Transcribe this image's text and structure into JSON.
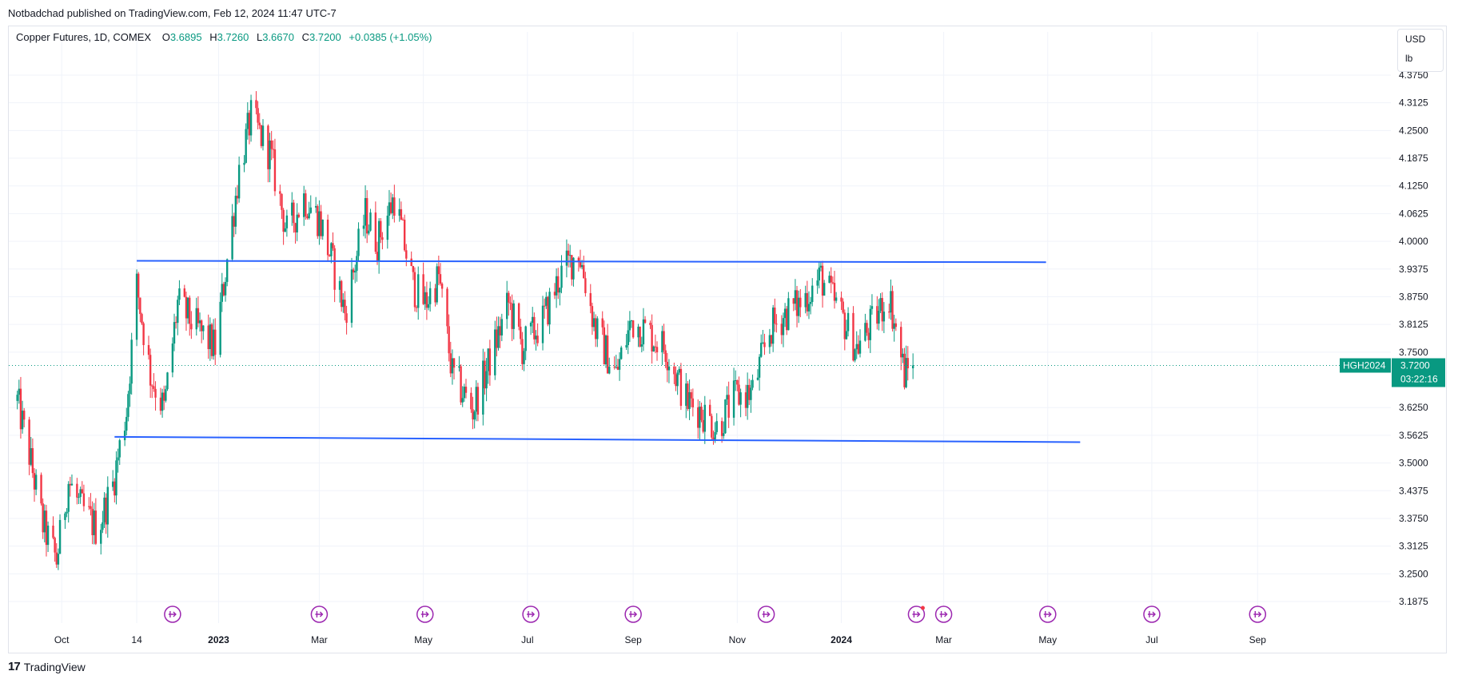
{
  "publish_line": "Notbadchad published on TradingView.com, Feb 12, 2024 11:47 UTC-7",
  "legend": {
    "symbol": "Copper Futures, 1D, COMEX",
    "open_label": "O",
    "open": "3.6895",
    "high_label": "H",
    "high": "3.7260",
    "low_label": "L",
    "low": "3.6670",
    "close_label": "C",
    "close": "3.7200",
    "change": "+0.0385 (+1.05%)"
  },
  "units": [
    "USD",
    "lb"
  ],
  "price_tag": {
    "ticker": "HGH2024",
    "price": "3.7200",
    "countdown": "03:22:16"
  },
  "brand": "TradingView",
  "colors": {
    "up": "#089981",
    "down": "#f23645",
    "trendline": "#2962ff",
    "event": "#9c27b0",
    "price_tag": "#089981"
  },
  "chart_data": {
    "type": "candlestick",
    "y_axis": {
      "min": 3.15,
      "max": 4.39,
      "ticks": [
        "4.3750",
        "4.3125",
        "4.2500",
        "4.1875",
        "4.1250",
        "4.0625",
        "4.0000",
        "3.9375",
        "3.8750",
        "3.8125",
        "3.7500",
        "3.6250",
        "3.5625",
        "3.5000",
        "3.4375",
        "3.3750",
        "3.3125",
        "3.2500",
        "3.1875"
      ]
    },
    "x_axis_labels": [
      "Oct",
      "14",
      "2023",
      "Mar",
      "May",
      "Jul",
      "Sep",
      "Nov",
      "2024",
      "Mar",
      "May",
      "Jul",
      "Sep"
    ],
    "last_price": 3.72,
    "anchors": [
      {
        "d": "2022-09-05",
        "p": 3.64
      },
      {
        "d": "2022-09-12",
        "p": 3.52
      },
      {
        "d": "2022-09-20",
        "p": 3.36
      },
      {
        "d": "2022-09-28",
        "p": 3.28
      },
      {
        "d": "2022-10-05",
        "p": 3.46
      },
      {
        "d": "2022-10-12",
        "p": 3.4
      },
      {
        "d": "2022-10-22",
        "p": 3.35
      },
      {
        "d": "2022-10-31",
        "p": 3.45
      },
      {
        "d": "2022-11-08",
        "p": 3.62
      },
      {
        "d": "2022-11-14",
        "p": 3.9
      },
      {
        "d": "2022-11-22",
        "p": 3.7
      },
      {
        "d": "2022-11-30",
        "p": 3.62
      },
      {
        "d": "2022-12-08",
        "p": 3.86
      },
      {
        "d": "2022-12-20",
        "p": 3.8
      },
      {
        "d": "2022-12-30",
        "p": 3.76
      },
      {
        "d": "2023-01-06",
        "p": 3.96
      },
      {
        "d": "2023-01-13",
        "p": 4.16
      },
      {
        "d": "2023-01-20",
        "p": 4.28
      },
      {
        "d": "2023-01-31",
        "p": 4.2
      },
      {
        "d": "2023-02-10",
        "p": 4.02
      },
      {
        "d": "2023-02-20",
        "p": 4.1
      },
      {
        "d": "2023-03-01",
        "p": 4.05
      },
      {
        "d": "2023-03-08",
        "p": 3.96
      },
      {
        "d": "2023-03-16",
        "p": 3.84
      },
      {
        "d": "2023-03-28",
        "p": 4.06
      },
      {
        "d": "2023-04-04",
        "p": 4.0
      },
      {
        "d": "2023-04-14",
        "p": 4.1
      },
      {
        "d": "2023-04-25",
        "p": 3.9
      },
      {
        "d": "2023-05-02",
        "p": 3.86
      },
      {
        "d": "2023-05-10",
        "p": 3.92
      },
      {
        "d": "2023-05-18",
        "p": 3.7
      },
      {
        "d": "2023-05-30",
        "p": 3.62
      },
      {
        "d": "2023-06-08",
        "p": 3.72
      },
      {
        "d": "2023-06-20",
        "p": 3.86
      },
      {
        "d": "2023-06-28",
        "p": 3.76
      },
      {
        "d": "2023-07-10",
        "p": 3.82
      },
      {
        "d": "2023-07-20",
        "p": 3.92
      },
      {
        "d": "2023-07-31",
        "p": 3.98
      },
      {
        "d": "2023-08-10",
        "p": 3.8
      },
      {
        "d": "2023-08-22",
        "p": 3.7
      },
      {
        "d": "2023-08-31",
        "p": 3.82
      },
      {
        "d": "2023-09-08",
        "p": 3.8
      },
      {
        "d": "2023-09-20",
        "p": 3.76
      },
      {
        "d": "2023-10-02",
        "p": 3.64
      },
      {
        "d": "2023-10-10",
        "p": 3.62
      },
      {
        "d": "2023-10-20",
        "p": 3.58
      },
      {
        "d": "2023-10-31",
        "p": 3.65
      },
      {
        "d": "2023-11-10",
        "p": 3.66
      },
      {
        "d": "2023-11-20",
        "p": 3.8
      },
      {
        "d": "2023-11-30",
        "p": 3.84
      },
      {
        "d": "2023-12-08",
        "p": 3.86
      },
      {
        "d": "2023-12-20",
        "p": 3.92
      },
      {
        "d": "2023-12-31",
        "p": 3.84
      },
      {
        "d": "2024-01-10",
        "p": 3.76
      },
      {
        "d": "2024-01-20",
        "p": 3.82
      },
      {
        "d": "2024-01-29",
        "p": 3.88
      },
      {
        "d": "2024-02-07",
        "p": 3.7
      },
      {
        "d": "2024-02-12",
        "p": 3.72
      }
    ],
    "trendlines": [
      {
        "from": {
          "d": "2022-11-14",
          "p": 3.956
        },
        "to": {
          "d": "2024-04-30",
          "p": 3.953
        }
      },
      {
        "from": {
          "d": "2022-11-01",
          "p": 3.559
        },
        "to": {
          "d": "2024-05-20",
          "p": 3.547
        }
      }
    ],
    "event_markers": [
      "2022-12-05",
      "2023-03-01",
      "2023-05-02",
      "2023-07-03",
      "2023-09-01",
      "2023-11-18",
      "2024-02-14",
      "2024-03-01",
      "2024-05-01",
      "2024-07-01",
      "2024-09-01"
    ]
  }
}
